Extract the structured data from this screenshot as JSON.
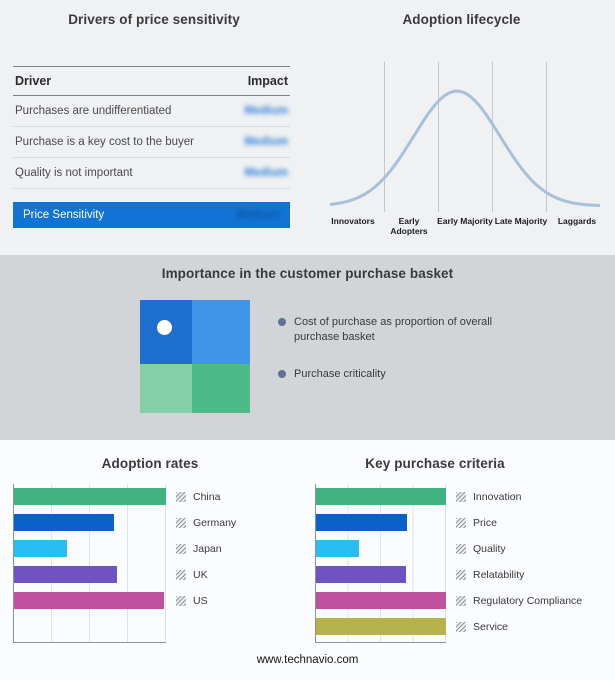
{
  "page": {
    "footer": "www.technavio.com"
  },
  "drivers": {
    "title": "Drivers of price sensitivity",
    "columns": [
      "Driver",
      "Impact"
    ],
    "rows": [
      {
        "driver": "Purchases are undifferentiated",
        "impact": "Medium"
      },
      {
        "driver": "Purchase is a key cost to the buyer",
        "impact": "Medium"
      },
      {
        "driver": "Quality is not important",
        "impact": "Medium"
      }
    ],
    "summary_row": {
      "label": "Price Sensitivity",
      "impact": "Medium"
    },
    "highlight_color": "#1174d4",
    "impact_text_color": "#2e7fd8",
    "summary_impact_color": "#0d55a6"
  },
  "basket": {
    "title": "Importance in the customer purchase basket",
    "legend": [
      "Cost of purchase as proportion of overall purchase basket",
      "Purchase criticality"
    ],
    "quadrant_colors": [
      "#1e6fd0",
      "#4094e9",
      "#84cfa6",
      "#4fba89"
    ],
    "bullet_color": "#5d7392"
  },
  "chart_data": [
    {
      "id": "adoption-lifecycle",
      "type": "line",
      "title": "Adoption lifecycle",
      "x_categories": [
        "Innovators",
        "Early Adopters",
        "Early Majority",
        "Late Majority",
        "Laggards"
      ],
      "curve": "bell",
      "peak_position": 0.47,
      "sigma": 0.16,
      "curve_color": "#a9c0da",
      "grid": "stage-separators",
      "ylabel": "",
      "xlabel": ""
    },
    {
      "id": "adoption-rates",
      "type": "bar",
      "orientation": "horizontal",
      "title": "Adoption rates",
      "categories": [
        "China",
        "Germany",
        "Japan",
        "UK",
        "US"
      ],
      "values": [
        100,
        66,
        35,
        68,
        99
      ],
      "colors": [
        "#3fb27f",
        "#0b61c9",
        "#29bdf2",
        "#6f53c3",
        "#c0519f"
      ],
      "xlim": [
        0,
        100
      ],
      "grid": true,
      "legend_position": "right"
    },
    {
      "id": "key-purchase-criteria",
      "type": "bar",
      "orientation": "horizontal",
      "title": "Key purchase criteria",
      "categories": [
        "Innovation",
        "Price",
        "Quality",
        "Relatability",
        "Regulatory Compliance",
        "Service"
      ],
      "values": [
        100,
        70,
        33,
        69,
        100,
        100
      ],
      "colors": [
        "#3fb27f",
        "#0b61c9",
        "#29bdf2",
        "#6f53c3",
        "#c0519f",
        "#b5b34a"
      ],
      "xlim": [
        0,
        100
      ],
      "grid": true,
      "legend_position": "right"
    }
  ]
}
